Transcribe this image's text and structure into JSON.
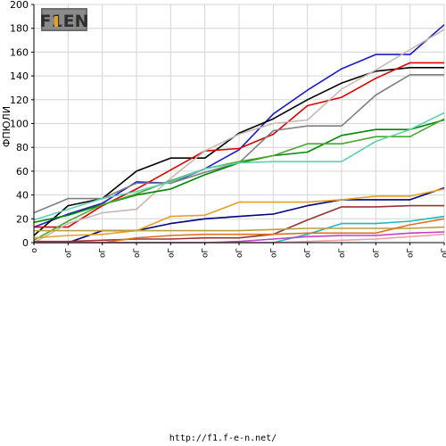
{
  "logo": {
    "text": "F1EN"
  },
  "footer": {
    "url": "http://f1.f-e-n.net/"
  },
  "chart_data": {
    "type": "line",
    "title": "",
    "ylabel": "ФПЮЛИ",
    "xlabel": "",
    "ylim": [
      0,
      200
    ],
    "yticks": [
      0,
      20,
      40,
      60,
      80,
      100,
      120,
      140,
      160,
      180,
      200
    ],
    "grid": true,
    "legend": "none",
    "categories": [
      "о",
      "оГ",
      "оГ",
      "оГ",
      "оГ",
      "оГ",
      "оГ",
      "оГ",
      "оГ",
      "оГ",
      "оГ",
      "оГ",
      "оГ"
    ],
    "series": [
      {
        "color": "#1a1acc",
        "values": [
          13,
          24,
          33,
          51,
          50,
          62,
          78,
          108,
          128,
          146,
          158,
          158,
          183
        ]
      },
      {
        "color": "#000000",
        "values": [
          6,
          31,
          37,
          60,
          71,
          71,
          92,
          104,
          120,
          134,
          144,
          147,
          147
        ]
      },
      {
        "color": "#dd0000",
        "values": [
          13,
          13,
          31,
          45,
          61,
          77,
          79,
          91,
          115,
          122,
          138,
          151,
          151
        ]
      },
      {
        "color": "#c8b8b0",
        "values": [
          0,
          16,
          25,
          28,
          54,
          77,
          91,
          100,
          103,
          129,
          145,
          162,
          179
        ]
      },
      {
        "color": "#808080",
        "values": [
          25,
          37,
          37,
          50,
          50,
          59,
          67,
          94,
          98,
          98,
          124,
          141,
          141
        ]
      },
      {
        "color": "#008800",
        "values": [
          17,
          23,
          32,
          40,
          45,
          57,
          67,
          73,
          76,
          90,
          95,
          95,
          103
        ]
      },
      {
        "color": "#4aa832",
        "values": [
          2,
          18,
          32,
          41,
          52,
          62,
          68,
          73,
          83,
          83,
          89,
          89,
          104
        ]
      },
      {
        "color": "#60d0b0",
        "values": [
          19,
          28,
          37,
          43,
          51,
          62,
          67,
          68,
          68,
          68,
          85,
          95,
          109
        ]
      },
      {
        "color": "#000080",
        "values": [
          0,
          0,
          10,
          10,
          16,
          20,
          22,
          24,
          31,
          36,
          36,
          36,
          46
        ]
      },
      {
        "color": "#e8a020",
        "values": [
          4,
          6,
          7,
          10,
          22,
          23,
          34,
          34,
          34,
          36,
          39,
          39,
          45
        ]
      },
      {
        "color": "#993333",
        "values": [
          1,
          1,
          2,
          3,
          3,
          4,
          4,
          7,
          19,
          30,
          30,
          31,
          31
        ]
      },
      {
        "color": "#20b8c0",
        "values": [
          0,
          0,
          0,
          0,
          0,
          0,
          0,
          0,
          7,
          16,
          16,
          18,
          22
        ]
      },
      {
        "color": "#b8a040",
        "values": [
          10,
          10,
          10,
          10,
          10,
          10,
          10,
          11,
          12,
          12,
          12,
          12,
          13
        ]
      },
      {
        "color": "#e07020",
        "values": [
          0,
          0,
          0,
          4,
          6,
          7,
          7,
          7,
          8,
          8,
          8,
          15,
          20
        ]
      },
      {
        "color": "#c040c0",
        "values": [
          0,
          0,
          0,
          0,
          0,
          0,
          1,
          3,
          5,
          6,
          6,
          8,
          9
        ]
      },
      {
        "color": "#f0a0a0",
        "values": [
          0,
          0,
          0,
          0,
          0,
          0,
          0,
          0,
          1,
          2,
          3,
          5,
          7
        ]
      }
    ]
  }
}
